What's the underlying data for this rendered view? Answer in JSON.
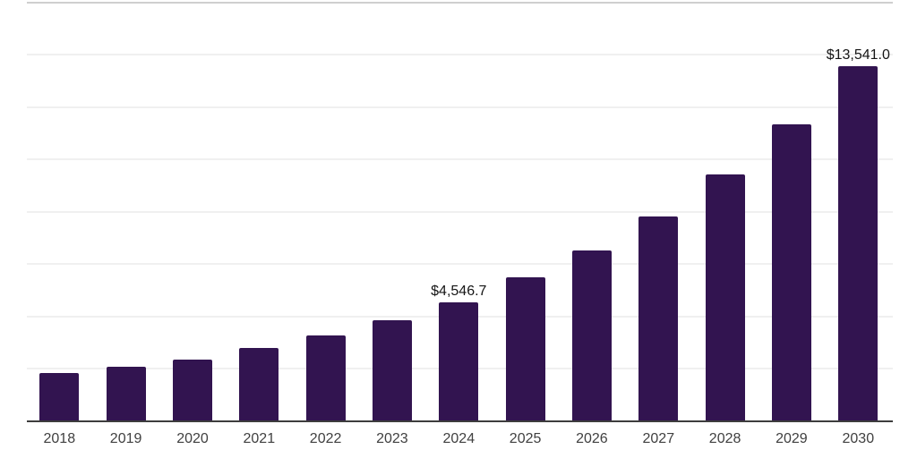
{
  "chart_data": {
    "type": "bar",
    "title": "",
    "xlabel": "",
    "ylabel": "",
    "categories": [
      "2018",
      "2019",
      "2020",
      "2021",
      "2022",
      "2023",
      "2024",
      "2025",
      "2026",
      "2027",
      "2028",
      "2029",
      "2030"
    ],
    "values": [
      1820,
      2060,
      2355,
      2790,
      3265,
      3840,
      4546.7,
      5480,
      6525,
      7825,
      9410,
      11330,
      13541.0
    ],
    "value_labels": [
      {
        "category_index": 6,
        "text": "$4,546.7"
      },
      {
        "category_index": 12,
        "text": "$13,541.0"
      }
    ],
    "ylim": [
      0,
      16000
    ],
    "gridline_step": 2000,
    "grid": "horizontal-only",
    "legend": "none",
    "y_axis_tick_labels": "none",
    "bar_color": "#321450",
    "gridline_color": "#f0f0f0",
    "axis_line_color": "#3d3d3d",
    "label_color": "#404040",
    "value_label_color": "#151515",
    "background_color": "#ffffff"
  }
}
